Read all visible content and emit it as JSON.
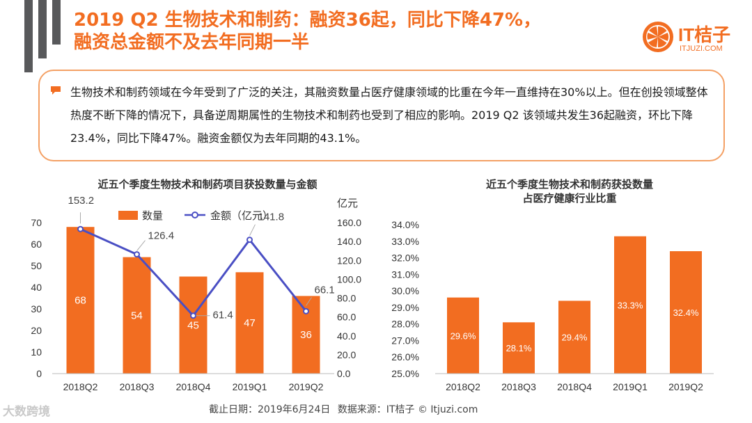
{
  "header": {
    "title_line1": "2019 Q2 生物技术和制药：融资36起，同比下降47%，",
    "title_line2": "融资总金额不及去年同期一半"
  },
  "logo": {
    "name": "IT桔子",
    "url": "ITJUZI.COM",
    "brand_color": "#f26d21"
  },
  "summary": {
    "bullet_icon": "chat-bubble-icon",
    "text": "生物技术和制药领域在今年受到了广泛的关注，其融资数量占医疗健康领域的比重在今年一直维持在30%以上。但在创投领域整体热度不断下降的情况下，具备逆周期属性的生物技术和制药也受到了相应的影响。2019 Q2 该领域共发生36起融资，环比下降23.4%，同比下降47%。融资金额仅为去年同期的43.1%。"
  },
  "chart_data": [
    {
      "type": "bar",
      "title": "近五个季度生物技术和制药项目获投数量与金额",
      "categories": [
        "2018Q2",
        "2018Q3",
        "2018Q4",
        "2019Q1",
        "2019Q2"
      ],
      "series": [
        {
          "name": "数量",
          "kind": "bar",
          "axis": "left",
          "values": [
            68,
            54,
            45,
            47,
            36
          ],
          "labels": [
            "68",
            "54",
            "45",
            "47",
            "36"
          ],
          "color": "#f26d21"
        },
        {
          "name": "金额（亿元）",
          "kind": "line",
          "axis": "right",
          "values": [
            153.2,
            126.4,
            61.4,
            141.8,
            66.1
          ],
          "labels": [
            "153.2",
            "126.4",
            "61.4",
            "141.8",
            "66.1"
          ],
          "color": "#4a4fc4"
        }
      ],
      "y_left": {
        "ylim": [
          0,
          70
        ],
        "ticks": [
          "0",
          "10",
          "20",
          "30",
          "40",
          "50",
          "60",
          "70"
        ]
      },
      "y_right": {
        "label": "亿元",
        "ylim": [
          0,
          160
        ],
        "ticks": [
          "0.0",
          "20.0",
          "40.0",
          "60.0",
          "80.0",
          "100.0",
          "120.0",
          "140.0",
          "160.0"
        ]
      },
      "legend": {
        "position": "top",
        "items": [
          "数量",
          "金额（亿元）"
        ]
      }
    },
    {
      "type": "bar",
      "title": "近五个季度生物技术和制药获投数量",
      "subtitle": "占医疗健康行业比重",
      "categories": [
        "2018Q2",
        "2018Q3",
        "2018Q4",
        "2019Q1",
        "2019Q2"
      ],
      "values": [
        29.6,
        28.1,
        29.4,
        33.3,
        32.4
      ],
      "labels": [
        "29.6%",
        "28.1%",
        "29.4%",
        "33.3%",
        "32.4%"
      ],
      "ylim": [
        25,
        34
      ],
      "ticks": [
        "25.0%",
        "26.0%",
        "27.0%",
        "28.0%",
        "29.0%",
        "30.0%",
        "31.0%",
        "32.0%",
        "33.0%",
        "34.0%"
      ],
      "color": "#f26d21"
    }
  ],
  "footer": {
    "date": "截止日期：2019年6月24日",
    "source": "数据来源：IT桔子 © Itjuzi.com"
  },
  "watermark": "大数跨境"
}
